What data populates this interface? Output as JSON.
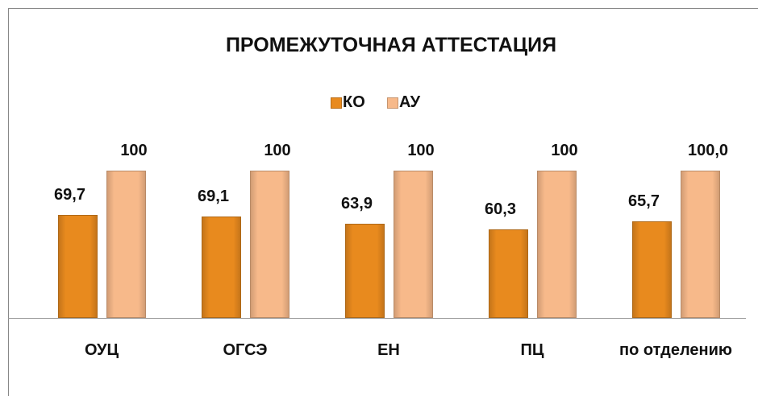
{
  "chart_data": {
    "type": "bar",
    "title": "ПРОМЕЖУТОЧНАЯ АТТЕСТАЦИЯ",
    "categories": [
      "ОУЦ",
      "ОГСЭ",
      "ЕН",
      "ПЦ",
      "по отделению"
    ],
    "series": [
      {
        "name": "КО",
        "color": "#e88a1e",
        "values": [
          69.7,
          69.1,
          63.9,
          60.3,
          65.7
        ],
        "value_labels": [
          "69,7",
          "69,1",
          "63,9",
          "60,3",
          "65,7"
        ]
      },
      {
        "name": "АУ",
        "color": "#f7b98a",
        "values": [
          100,
          100,
          100,
          100,
          100
        ],
        "value_labels": [
          "100",
          "100",
          "100",
          "100",
          "100,0"
        ]
      }
    ],
    "ylim": [
      0,
      100
    ],
    "grid": false,
    "legend": "top"
  }
}
